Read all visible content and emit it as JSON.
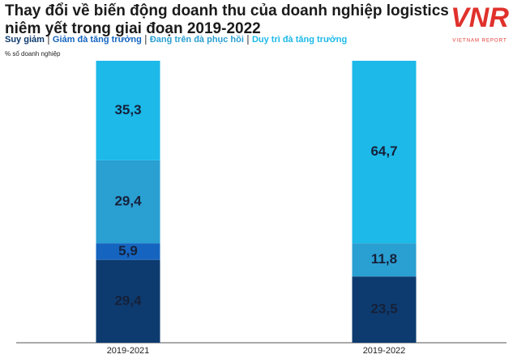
{
  "chart_data": {
    "type": "stacked_bar",
    "title": [
      "Thay đổi về biến động doanh thu của doanh nghiệp logistics",
      "niêm yết trong giai đoạn 2019-2022"
    ],
    "ylabel": "% số doanh nghiệp",
    "logo": {
      "mark": "VNR",
      "name": "VIETNAM REPORT"
    },
    "categories": [
      "2019-2021",
      "2019-2022"
    ],
    "ylim": [
      0,
      100
    ],
    "series": [
      {
        "name": "Suy giảm",
        "color": "#0d3b6f",
        "values": [
          29.4,
          23.5
        ],
        "value_labels": [
          "29,4",
          "23,5"
        ]
      },
      {
        "name": "Giảm đà tăng trưởng",
        "color": "#1565c0",
        "values": [
          5.9,
          null
        ],
        "value_labels": [
          "5,9",
          null
        ]
      },
      {
        "name": "Đang trên đà phục hồi",
        "color": "#2a9fd2",
        "values": [
          29.4,
          11.8
        ],
        "value_labels": [
          "29,4",
          "11,8"
        ]
      },
      {
        "name": "Duy trì đà tăng trưởng",
        "color": "#1cb9e9",
        "values": [
          35.3,
          64.7
        ],
        "value_labels": [
          "35,3",
          "64,7"
        ]
      }
    ]
  }
}
